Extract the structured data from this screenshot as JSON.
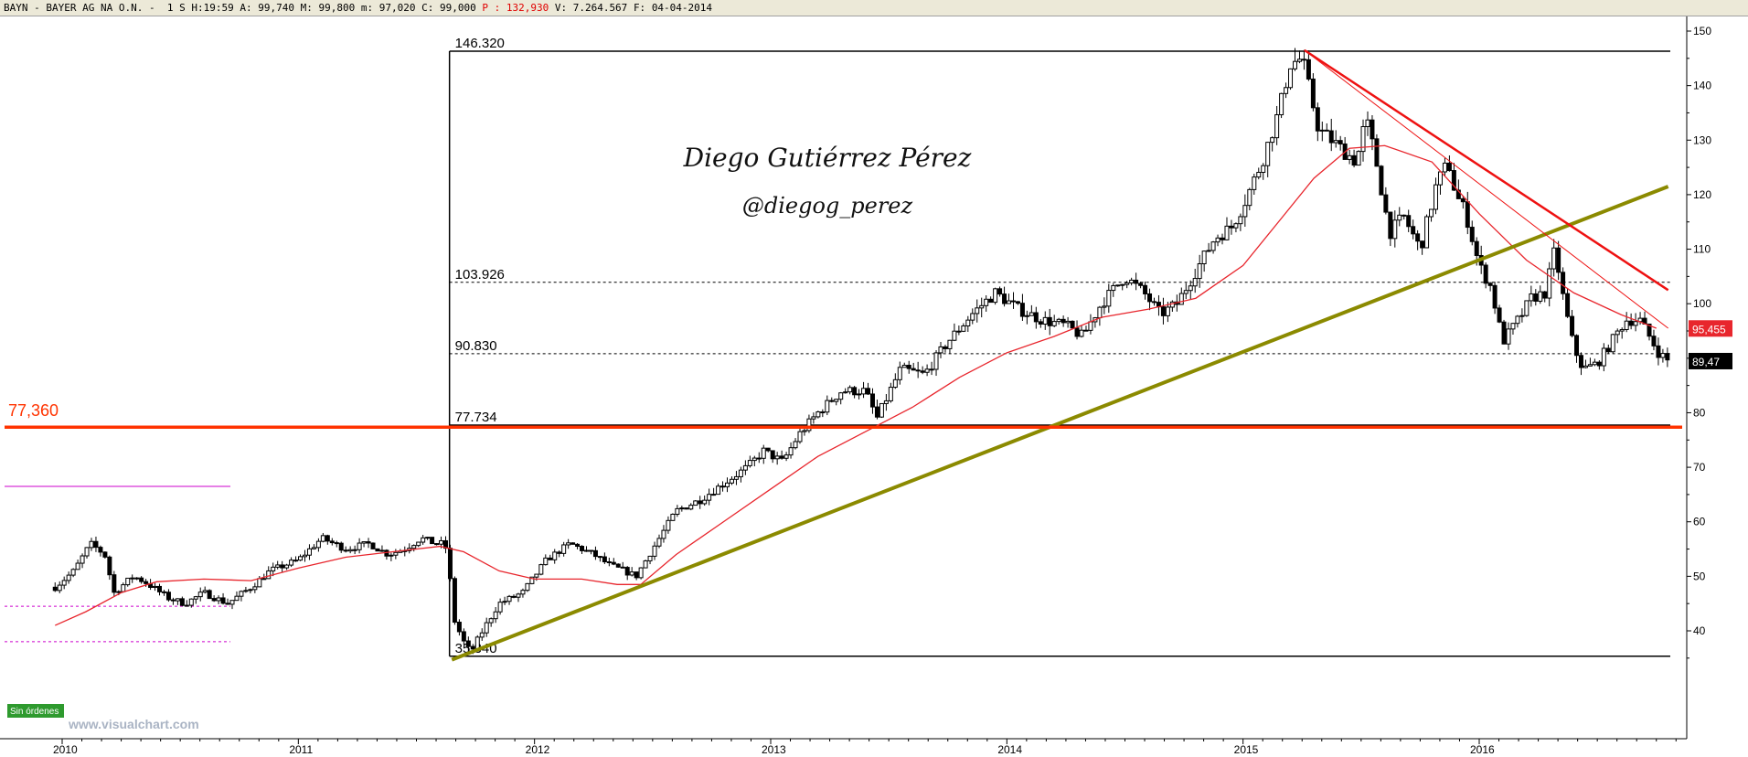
{
  "header": {
    "symbol": "BAYN",
    "name": "BAYER AG NA O.N.",
    "timeframe": "1 S",
    "time_label": "H:",
    "time": "19:59",
    "open_label": "A:",
    "open": "99,740",
    "high_label": "M:",
    "high": "99,800",
    "low_label": "m:",
    "low": "97,020",
    "close_label": "C:",
    "close": "99,000",
    "p_label": "P :",
    "p_value": "132,930",
    "volume_label": "V:",
    "volume": "7.264.567",
    "date_label": "F:",
    "date": "04-04-2014"
  },
  "author": {
    "name": "Diego Gutiérrez Pérez",
    "handle": "@diegog_perez"
  },
  "watermark": "www.visualchart.com",
  "orders_badge": "Sin órdenes",
  "colors": {
    "candle": "#000000",
    "ma": "#e8262d",
    "support": "#ff3300",
    "trend_up": "#8b8a00",
    "trend_down": "#ee1111",
    "price_tag": "#e8262d",
    "last_tag": "#000000",
    "orders_badge": "#2e9a2e",
    "magenta": "#cc00cc"
  },
  "chart_data": {
    "type": "candlestick",
    "title": "",
    "xlabel": "",
    "ylabel": "",
    "ylim": [
      33,
      152
    ],
    "y_ticks": [
      40,
      50,
      60,
      70,
      80,
      90,
      100,
      110,
      120,
      130,
      140,
      150
    ],
    "xlim": [
      2009.95,
      2016.85
    ],
    "x_ticks": [
      {
        "label": "2010",
        "x": 2010
      },
      {
        "label": "2011",
        "x": 2011
      },
      {
        "label": "2012",
        "x": 2012
      },
      {
        "label": "2013",
        "x": 2013
      },
      {
        "label": "2014",
        "x": 2014
      },
      {
        "label": "2015",
        "x": 2015
      },
      {
        "label": "2016",
        "x": 2016
      }
    ],
    "grid": false,
    "price_path": [
      [
        2009.97,
        48
      ],
      [
        2010.05,
        51
      ],
      [
        2010.12,
        56
      ],
      [
        2010.18,
        54
      ],
      [
        2010.22,
        47
      ],
      [
        2010.3,
        50
      ],
      [
        2010.35,
        49
      ],
      [
        2010.45,
        46
      ],
      [
        2010.52,
        45
      ],
      [
        2010.6,
        47
      ],
      [
        2010.7,
        45
      ],
      [
        2010.8,
        48
      ],
      [
        2010.88,
        51
      ],
      [
        2011.0,
        53
      ],
      [
        2011.1,
        57
      ],
      [
        2011.2,
        55
      ],
      [
        2011.3,
        56
      ],
      [
        2011.38,
        54
      ],
      [
        2011.45,
        55
      ],
      [
        2011.52,
        57
      ],
      [
        2011.58,
        56
      ],
      [
        2011.62,
        56
      ],
      [
        2011.64,
        52
      ],
      [
        2011.65,
        43
      ],
      [
        2011.7,
        38
      ],
      [
        2011.73,
        36
      ],
      [
        2011.78,
        40
      ],
      [
        2011.85,
        45
      ],
      [
        2011.95,
        47
      ],
      [
        2012.05,
        53
      ],
      [
        2012.15,
        56
      ],
      [
        2012.25,
        54
      ],
      [
        2012.32,
        52
      ],
      [
        2012.38,
        51
      ],
      [
        2012.43,
        50
      ],
      [
        2012.5,
        55
      ],
      [
        2012.6,
        62
      ],
      [
        2012.7,
        64
      ],
      [
        2012.8,
        67
      ],
      [
        2012.9,
        70
      ],
      [
        2012.97,
        73
      ],
      [
        2013.05,
        71
      ],
      [
        2013.12,
        76
      ],
      [
        2013.2,
        80
      ],
      [
        2013.3,
        84
      ],
      [
        2013.4,
        84
      ],
      [
        2013.45,
        79
      ],
      [
        2013.55,
        88
      ],
      [
        2013.65,
        87
      ],
      [
        2013.75,
        93
      ],
      [
        2013.85,
        98
      ],
      [
        2013.95,
        102
      ],
      [
        2014.05,
        99
      ],
      [
        2014.15,
        97
      ],
      [
        2014.25,
        96
      ],
      [
        2014.32,
        94
      ],
      [
        2014.4,
        100
      ],
      [
        2014.5,
        105
      ],
      [
        2014.58,
        102
      ],
      [
        2014.65,
        98
      ],
      [
        2014.72,
        100
      ],
      [
        2014.8,
        106
      ],
      [
        2014.88,
        112
      ],
      [
        2014.95,
        114
      ],
      [
        2015.0,
        118
      ],
      [
        2015.08,
        126
      ],
      [
        2015.15,
        135
      ],
      [
        2015.2,
        144
      ],
      [
        2015.25,
        145
      ],
      [
        2015.32,
        132
      ],
      [
        2015.4,
        129
      ],
      [
        2015.48,
        126
      ],
      [
        2015.52,
        134
      ],
      [
        2015.56,
        127
      ],
      [
        2015.62,
        113
      ],
      [
        2015.68,
        116
      ],
      [
        2015.75,
        110
      ],
      [
        2015.82,
        122
      ],
      [
        2015.87,
        126
      ],
      [
        2015.9,
        120
      ],
      [
        2015.94,
        117
      ],
      [
        2016.0,
        107
      ],
      [
        2016.05,
        103
      ],
      [
        2016.1,
        93
      ],
      [
        2016.18,
        98
      ],
      [
        2016.22,
        101
      ],
      [
        2016.28,
        102
      ],
      [
        2016.32,
        110
      ],
      [
        2016.36,
        100
      ],
      [
        2016.4,
        92
      ],
      [
        2016.44,
        88
      ],
      [
        2016.5,
        89
      ],
      [
        2016.56,
        93
      ],
      [
        2016.62,
        97
      ],
      [
        2016.68,
        97
      ],
      [
        2016.72,
        94
      ],
      [
        2016.76,
        91
      ],
      [
        2016.8,
        89.5
      ]
    ],
    "moving_average": {
      "name": "",
      "points": [
        [
          2009.97,
          41
        ],
        [
          2010.1,
          43.5
        ],
        [
          2010.25,
          47
        ],
        [
          2010.4,
          49
        ],
        [
          2010.6,
          49.5
        ],
        [
          2010.8,
          49.2
        ],
        [
          2011.0,
          51.5
        ],
        [
          2011.2,
          53.5
        ],
        [
          2011.4,
          54.5
        ],
        [
          2011.6,
          55.5
        ],
        [
          2011.7,
          54.5
        ],
        [
          2011.85,
          51
        ],
        [
          2012.0,
          49.5
        ],
        [
          2012.2,
          49.5
        ],
        [
          2012.35,
          48.5
        ],
        [
          2012.45,
          48.5
        ],
        [
          2012.6,
          54
        ],
        [
          2012.8,
          60
        ],
        [
          2013.0,
          66
        ],
        [
          2013.2,
          72
        ],
        [
          2013.4,
          76.5
        ],
        [
          2013.6,
          81
        ],
        [
          2013.8,
          86.5
        ],
        [
          2014.0,
          91
        ],
        [
          2014.2,
          94
        ],
        [
          2014.4,
          97.5
        ],
        [
          2014.6,
          99
        ],
        [
          2014.8,
          101
        ],
        [
          2015.0,
          107
        ],
        [
          2015.15,
          115
        ],
        [
          2015.3,
          123
        ],
        [
          2015.45,
          128.5
        ],
        [
          2015.6,
          129
        ],
        [
          2015.8,
          126
        ],
        [
          2016.0,
          116.5
        ],
        [
          2016.2,
          108
        ],
        [
          2016.4,
          102
        ],
        [
          2016.6,
          98
        ],
        [
          2016.75,
          95.5
        ]
      ]
    },
    "levels": [
      {
        "label": "146.320",
        "value": 146.32,
        "style": "solid"
      },
      {
        "label": "103.926",
        "value": 103.926,
        "style": "dashed"
      },
      {
        "label": "90.830",
        "value": 90.83,
        "style": "dashed"
      },
      {
        "label": "77.734",
        "value": 77.734,
        "style": "solid"
      },
      {
        "label": "35.340",
        "value": 35.34,
        "style": "solid"
      }
    ],
    "support_line": {
      "label": "77,360",
      "value": 77.36
    },
    "trendlines": [
      {
        "kind": "up",
        "from": [
          2011.65,
          34.7
        ],
        "to": [
          2016.8,
          121.5
        ]
      },
      {
        "kind": "down",
        "from": [
          2015.26,
          146.5
        ],
        "to": [
          2016.8,
          102.5
        ]
      },
      {
        "kind": "down-thin",
        "from": [
          2015.26,
          146.5
        ],
        "to": [
          2016.8,
          95.5
        ]
      }
    ],
    "old_levels": [
      {
        "value": 66.5,
        "style": "solid-magenta"
      },
      {
        "value": 44.5,
        "style": "dashed-magenta"
      },
      {
        "value": 38,
        "style": "dashed-magenta"
      }
    ],
    "price_tags": [
      {
        "label": "95,455",
        "value": 95.455,
        "kind": "ma"
      },
      {
        "label": "89,47",
        "value": 89.47,
        "kind": "last"
      }
    ]
  }
}
